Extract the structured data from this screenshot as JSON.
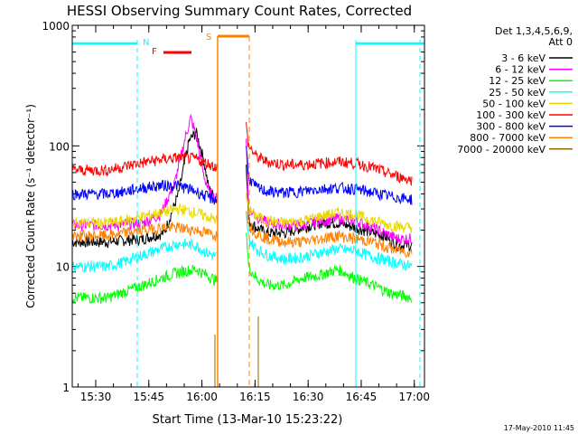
{
  "chart_data": {
    "type": "line",
    "title": "HESSI Observing Summary Count Rates, Corrected",
    "xlabel": "Start Time (13-Mar-10 15:23:22)",
    "ylabel": "Corrected Count Rate (s⁻¹ detector⁻¹)",
    "x_tick_labels": [
      "15:30",
      "15:45",
      "16:00",
      "16:15",
      "16:30",
      "16:45",
      "17:00"
    ],
    "x_tick_minutes": [
      6.63,
      21.63,
      36.63,
      51.63,
      66.63,
      81.63,
      96.63
    ],
    "x_range_minutes": [
      0,
      99.5
    ],
    "y_scale": "log",
    "ylim": [
      1,
      1000
    ],
    "y_tick_labels": [
      "1",
      "10",
      "100",
      "1000"
    ],
    "y_tick_values": [
      1,
      10,
      100,
      1000
    ],
    "grid": false,
    "legend_placement": "right-outside",
    "legend_title": [
      "Det 1,3,4,5,6,9,",
      "Att 0"
    ],
    "footer_date": "17-May-2010 11:45",
    "series": [
      {
        "name": "3 - 6 keV",
        "color": "#000000",
        "t": [
          0,
          10,
          20,
          26,
          30,
          33,
          35,
          37,
          38.5,
          40,
          41.2,
          44,
          49,
          49.8,
          52,
          55,
          60,
          65,
          70,
          75,
          80,
          85,
          88,
          92,
          96
        ],
        "v": [
          16,
          16,
          17,
          19,
          40,
          110,
          130,
          80,
          45,
          38,
          35,
          null,
          100,
          24,
          21,
          19,
          19,
          21,
          23,
          23,
          21,
          19,
          18,
          15,
          15
        ]
      },
      {
        "name": "6 - 12 keV",
        "color": "#ff00ff",
        "t": [
          0,
          10,
          20,
          25,
          29,
          32,
          33.5,
          35,
          37,
          38.5,
          40,
          41.2,
          44,
          49,
          49.8,
          52,
          55,
          60,
          65,
          70,
          75,
          80,
          85,
          88,
          92,
          96
        ],
        "v": [
          22,
          22,
          23,
          27,
          50,
          120,
          170,
          120,
          60,
          42,
          38,
          36,
          null,
          160,
          30,
          26,
          23,
          22,
          22,
          24,
          25,
          24,
          21,
          19,
          17,
          17
        ]
      },
      {
        "name": "12 - 25 keV",
        "color": "#00ff00",
        "t": [
          0,
          10,
          15,
          20,
          25,
          30,
          35,
          38,
          41.2,
          44,
          49,
          49.8,
          52,
          55,
          60,
          65,
          70,
          75,
          80,
          85,
          90,
          96
        ],
        "v": [
          5.5,
          5.5,
          6.2,
          7,
          8,
          9,
          9.5,
          8.5,
          7.5,
          null,
          25,
          10,
          8,
          7,
          7,
          8,
          8.5,
          9.5,
          8,
          7,
          6,
          5.5
        ]
      },
      {
        "name": "25 - 50 keV",
        "color": "#00ffff",
        "t": [
          0,
          10,
          15,
          20,
          25,
          30,
          35,
          38,
          41.2,
          44,
          49,
          49.8,
          52,
          55,
          60,
          65,
          70,
          75,
          80,
          85,
          90,
          96
        ],
        "v": [
          10,
          10,
          11,
          12.5,
          14,
          15.5,
          15,
          13,
          12,
          null,
          30,
          17,
          14,
          12.5,
          11.5,
          12,
          13,
          14,
          13.5,
          12,
          11,
          10
        ]
      },
      {
        "name": "50 - 100 keV",
        "color": "#e8d800",
        "t": [
          0,
          10,
          15,
          20,
          25,
          30,
          35,
          38,
          41.2,
          44,
          49,
          49.8,
          52,
          55,
          60,
          65,
          70,
          75,
          80,
          85,
          90,
          96
        ],
        "v": [
          23,
          23,
          24,
          26,
          28,
          30,
          28,
          26,
          24,
          null,
          40,
          30,
          26,
          24,
          23,
          24,
          26,
          28,
          27,
          24,
          22,
          21
        ]
      },
      {
        "name": "100 - 300 keV",
        "color": "#ff0000",
        "t": [
          0,
          10,
          15,
          20,
          25,
          30,
          35,
          38,
          41.2,
          44,
          49,
          49.8,
          52,
          55,
          60,
          65,
          70,
          75,
          80,
          85,
          90,
          96
        ],
        "v": [
          63,
          63,
          68,
          73,
          77,
          80,
          78,
          72,
          66,
          null,
          160,
          100,
          82,
          74,
          70,
          70,
          72,
          74,
          72,
          66,
          58,
          52
        ]
      },
      {
        "name": "300 - 800 keV",
        "color": "#0000ff",
        "t": [
          0,
          10,
          15,
          20,
          25,
          30,
          35,
          38,
          41.2,
          44,
          49,
          49.8,
          52,
          55,
          60,
          65,
          70,
          75,
          80,
          85,
          90,
          96
        ],
        "v": [
          40,
          40,
          42,
          45,
          47,
          47,
          42,
          38,
          35,
          null,
          120,
          55,
          45,
          42,
          41,
          42,
          44,
          45,
          44,
          41,
          38,
          36
        ]
      },
      {
        "name": "800 - 7000 keV",
        "color": "#ff8000",
        "t": [
          0,
          10,
          15,
          20,
          25,
          30,
          35,
          38,
          41.2,
          44,
          49,
          49.8,
          52,
          55,
          60,
          65,
          70,
          75,
          80,
          85,
          90,
          96
        ],
        "v": [
          18,
          18,
          19,
          20,
          21,
          21,
          20,
          19,
          18,
          null,
          35,
          22,
          19,
          17,
          16,
          16,
          17,
          18,
          17,
          16,
          14,
          13
        ]
      },
      {
        "name": "7000 - 20000 keV",
        "color": "#8b6b00",
        "t": [],
        "v": []
      }
    ],
    "flags": [
      {
        "label": "N",
        "color": "#00ffff"
      },
      {
        "label": "F",
        "color": "#ff0000"
      },
      {
        "label": "S",
        "color": "#ff8000"
      }
    ]
  }
}
